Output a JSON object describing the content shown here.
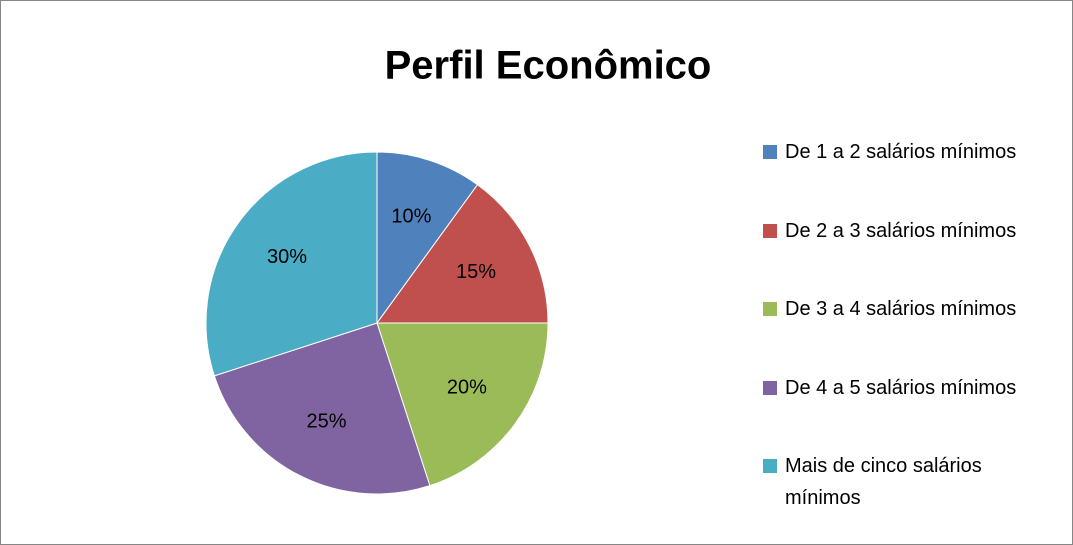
{
  "chart_data": {
    "type": "pie",
    "title": "Perfil Econômico",
    "categories": [
      "De 1 a 2 salários mínimos",
      "De 2 a 3 salários mínimos",
      "De 3 a 4 salários mínimos",
      "De 4 a 5 salários mínimos",
      "Mais de cinco salários mínimos"
    ],
    "values": [
      10,
      15,
      20,
      25,
      30
    ],
    "value_labels": [
      "10%",
      "15%",
      "20%",
      "25%",
      "30%"
    ],
    "colors": [
      "#4f81bd",
      "#c0504d",
      "#9bbb59",
      "#8064a2",
      "#4bacc6"
    ],
    "legend": "right"
  }
}
